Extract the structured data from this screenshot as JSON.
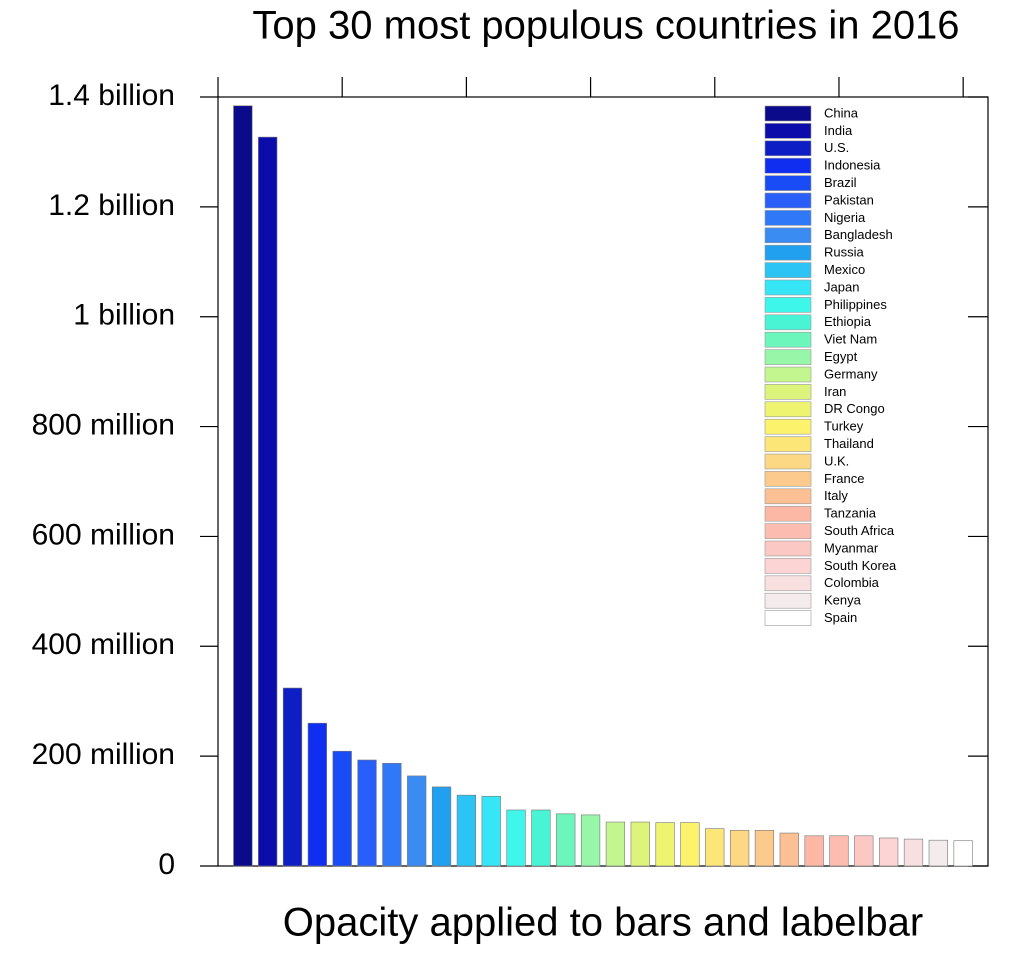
{
  "chart_data": {
    "type": "bar",
    "title": "Top 30 most populous countries in 2016",
    "xlabel": "Opacity applied to bars and labelbar",
    "categories": [
      "China",
      "India",
      "U.S.",
      "Indonesia",
      "Brazil",
      "Pakistan",
      "Nigeria",
      "Bangladesh",
      "Russia",
      "Mexico",
      "Japan",
      "Philippines",
      "Ethiopia",
      "Viet Nam",
      "Egypt",
      "Germany",
      "Iran",
      "DR Congo",
      "Turkey",
      "Thailand",
      "U.K.",
      "France",
      "Italy",
      "Tanzania",
      "South Africa",
      "Myanmar",
      "South Korea",
      "Colombia",
      "Kenya",
      "Spain"
    ],
    "values": [
      1384000000,
      1327000000,
      324000000,
      260000000,
      209000000,
      193000000,
      187000000,
      164000000,
      144000000,
      129000000,
      127000000,
      102000000,
      102000000,
      95000000,
      93000000,
      80000000,
      80000000,
      79000000,
      79000000,
      68000000,
      65000000,
      65000000,
      60000000,
      55000000,
      55000000,
      55000000,
      51000000,
      49000000,
      47000000,
      46000000
    ],
    "colors": [
      "#0a0a8a",
      "#0c0cab",
      "#0d1ec4",
      "#0f2ef0",
      "#1a4cf5",
      "#2a5ef8",
      "#2f78f8",
      "#3a8cf2",
      "#22a0f0",
      "#2cc4f4",
      "#36e6f6",
      "#3ef6ea",
      "#48f4d4",
      "#6cf6bc",
      "#98f6a8",
      "#c4f690",
      "#dcf47c",
      "#eef470",
      "#fcf26c",
      "#fce678",
      "#fcd884",
      "#fcca8c",
      "#fcc094",
      "#fcb8a4",
      "#fcbcb0",
      "#fcc8c4",
      "#fcd4d4",
      "#f8e0e0",
      "#f4ecec",
      "#ffffff"
    ],
    "xlim": [
      0,
      31
    ],
    "xticks": [
      0,
      5,
      10,
      15,
      20,
      25,
      30
    ],
    "ylim": [
      0,
      1400000000
    ],
    "yticks": [
      0,
      {
        "value": 200000000,
        "label": "200 million"
      },
      {
        "value": 400000000,
        "label": "400 million"
      },
      {
        "value": 600000000,
        "label": "600 million"
      },
      {
        "value": 800000000,
        "label": "800 million"
      },
      {
        "value": 1000000000,
        "label": "1 billion"
      },
      {
        "value": 1200000000,
        "label": "1.2 billion"
      },
      {
        "value": 1400000000,
        "label": "1.4 billion"
      }
    ],
    "legend": "top-right"
  }
}
